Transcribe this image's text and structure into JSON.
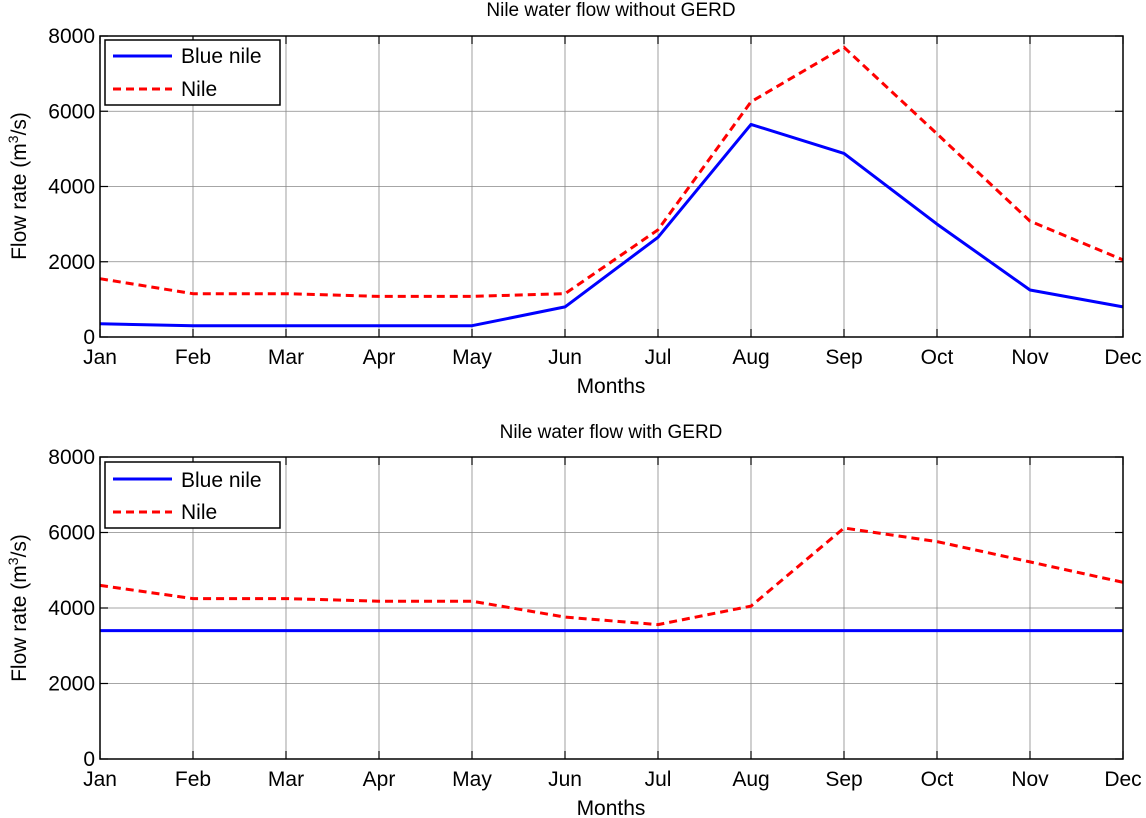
{
  "chart_data": [
    {
      "type": "line",
      "title": "Nile water flow without GERD",
      "xlabel": "Months",
      "ylabel_main": "Flow rate (m",
      "ylabel_sup": "3",
      "ylabel_tail": "/s)",
      "categories": [
        "Jan",
        "Feb",
        "Mar",
        "Apr",
        "May",
        "Jun",
        "Jul",
        "Aug",
        "Sep",
        "Oct",
        "Nov",
        "Dec"
      ],
      "ylim": [
        0,
        8000
      ],
      "yticks": [
        0,
        2000,
        4000,
        6000,
        8000
      ],
      "grid": true,
      "legend_position": "top-left",
      "series": [
        {
          "name": "Blue nile",
          "color": "#0000ff",
          "style": "solid",
          "values": [
            350,
            300,
            300,
            300,
            300,
            800,
            2650,
            5650,
            4880,
            3000,
            1250,
            800
          ]
        },
        {
          "name": "Nile",
          "color": "#ff0000",
          "style": "dashed",
          "values": [
            1550,
            1150,
            1150,
            1080,
            1080,
            1150,
            2850,
            6250,
            7700,
            5400,
            3080,
            2050
          ]
        }
      ]
    },
    {
      "type": "line",
      "title": "Nile water flow with GERD",
      "xlabel": "Months",
      "ylabel_main": "Flow rate (m",
      "ylabel_sup": "3",
      "ylabel_tail": "/s)",
      "categories": [
        "Jan",
        "Feb",
        "Mar",
        "Apr",
        "May",
        "Jun",
        "Jul",
        "Aug",
        "Sep",
        "Oct",
        "Nov",
        "Dec"
      ],
      "ylim": [
        0,
        8000
      ],
      "yticks": [
        0,
        2000,
        4000,
        6000,
        8000
      ],
      "grid": true,
      "legend_position": "top-left",
      "series": [
        {
          "name": "Blue nile",
          "color": "#0000ff",
          "style": "solid",
          "values": [
            3400,
            3400,
            3400,
            3400,
            3400,
            3400,
            3400,
            3400,
            3400,
            3400,
            3400,
            3400
          ]
        },
        {
          "name": "Nile",
          "color": "#ff0000",
          "style": "dashed",
          "values": [
            4600,
            4250,
            4250,
            4180,
            4180,
            3760,
            3560,
            4050,
            6120,
            5760,
            5220,
            4680
          ]
        }
      ]
    }
  ]
}
